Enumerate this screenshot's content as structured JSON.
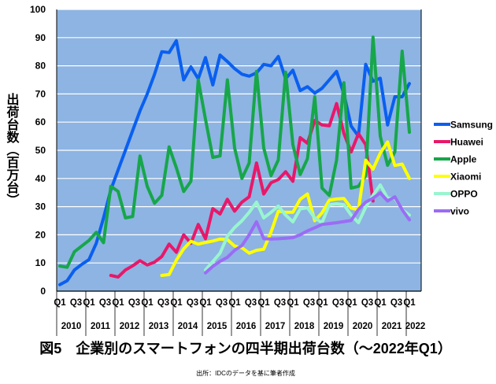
{
  "chart_data": {
    "type": "line",
    "title": "図5　企業別のスマートフォンの四半期出荷台数（～2022年Q1）",
    "source": "出所：IDCのデータを基に筆者作成",
    "ylabel": "出荷台数（百万台）",
    "xlabel": "",
    "ylim": [
      0,
      100
    ],
    "yticks": [
      "0",
      "10",
      "20",
      "30",
      "40",
      "50",
      "60",
      "70",
      "80",
      "90",
      "100"
    ],
    "grid": true,
    "legend": "right",
    "years": [
      "2010",
      "2011",
      "2012",
      "2013",
      "2014",
      "2015",
      "2016",
      "2017",
      "2018",
      "2019",
      "2020",
      "2021",
      "2022"
    ],
    "quarter_tick_labels": [
      "Q1",
      "Q3"
    ],
    "x_range": [
      "2010 Q1",
      "2022 Q1"
    ],
    "plot_background": "#8db4e2",
    "series": [
      {
        "name": "Samsung",
        "color": "#0a5ff0",
        "values": [
          2.3,
          3.7,
          7.5,
          9.5,
          11.2,
          17,
          26,
          36,
          43,
          50,
          57,
          64,
          70,
          77,
          85,
          84.7,
          88.9,
          75,
          79.6,
          75.4,
          82.9,
          73.2,
          83.8,
          81.5,
          79,
          77,
          76.3,
          77.5,
          80.5,
          80,
          83.3,
          75.4,
          78.4,
          71.2,
          72.6,
          70.3,
          72,
          75,
          78,
          70,
          58.6,
          55,
          80.5,
          74.5,
          75.6,
          59,
          69,
          69,
          73.7
        ]
      },
      {
        "name": "Huawei",
        "color": "#e8186a",
        "values": [
          null,
          null,
          null,
          null,
          null,
          null,
          null,
          5.6,
          5,
          7.5,
          9,
          10.8,
          9.3,
          10.3,
          12.3,
          16.7,
          13.8,
          20,
          17,
          23.7,
          18.6,
          29.3,
          27.4,
          32.6,
          28.4,
          31.6,
          33.5,
          45.5,
          34.5,
          38.5,
          39.6,
          42.4,
          39,
          54.5,
          52.5,
          60.6,
          59,
          58.7,
          66.6,
          56,
          49.4,
          55.9,
          52,
          32,
          null,
          null,
          null,
          null,
          null
        ]
      },
      {
        "name": "Apple",
        "color": "#17a64a",
        "values": [
          8.9,
          8.5,
          14,
          16,
          18,
          20.9,
          17.2,
          37.2,
          35.4,
          26,
          26.5,
          48,
          37.2,
          31.2,
          34,
          51.2,
          43.8,
          35.4,
          39,
          75,
          61,
          47.5,
          48,
          75,
          50.8,
          40,
          45.5,
          78,
          50.8,
          41,
          46.6,
          77.7,
          52,
          41.4,
          47,
          69,
          36.6,
          34,
          46.5,
          74,
          36.6,
          37.2,
          41,
          90.2,
          55,
          44.7,
          49.4,
          85.2,
          56.4
        ]
      },
      {
        "name": "Xiaomi",
        "color": "#ffff00",
        "values": [
          null,
          null,
          null,
          null,
          null,
          null,
          null,
          null,
          null,
          null,
          null,
          null,
          null,
          null,
          5.6,
          5.9,
          11,
          15,
          17.7,
          16.7,
          17.3,
          17.8,
          18.5,
          18.3,
          16,
          15.4,
          13.5,
          14.5,
          14.9,
          21,
          28.4,
          28,
          28,
          32.6,
          34.5,
          25,
          27.8,
          32.3,
          32.7,
          32.9,
          29.5,
          28.9,
          46.5,
          43.3,
          49,
          53,
          44.6,
          45.1,
          40
        ]
      },
      {
        "name": "OPPO",
        "color": "#99f5cf",
        "values": [
          null,
          null,
          null,
          null,
          null,
          null,
          null,
          null,
          null,
          null,
          null,
          null,
          null,
          null,
          null,
          null,
          null,
          null,
          null,
          null,
          7.5,
          10.5,
          13.5,
          19.5,
          22.6,
          25,
          28,
          31.6,
          26,
          28,
          30.2,
          27,
          24.6,
          29.2,
          29.6,
          26,
          24.3,
          30.7,
          31,
          30.7,
          27,
          24.3,
          29.8,
          34,
          37.7,
          33,
          33,
          28.9,
          27
        ]
      },
      {
        "name": "vivo",
        "color": "#9b6cf5",
        "values": [
          null,
          null,
          null,
          null,
          null,
          null,
          null,
          null,
          null,
          null,
          null,
          null,
          null,
          null,
          null,
          null,
          null,
          null,
          null,
          null,
          6.5,
          8.8,
          10.6,
          12,
          14.5,
          16.2,
          20,
          24.6,
          18.6,
          18.5,
          18.6,
          18.8,
          19,
          20,
          21.4,
          22.5,
          23.7,
          24,
          24.3,
          24.7,
          25.1,
          29,
          31.6,
          33,
          34.9,
          32,
          33.5,
          28.9,
          25.3
        ]
      }
    ]
  }
}
